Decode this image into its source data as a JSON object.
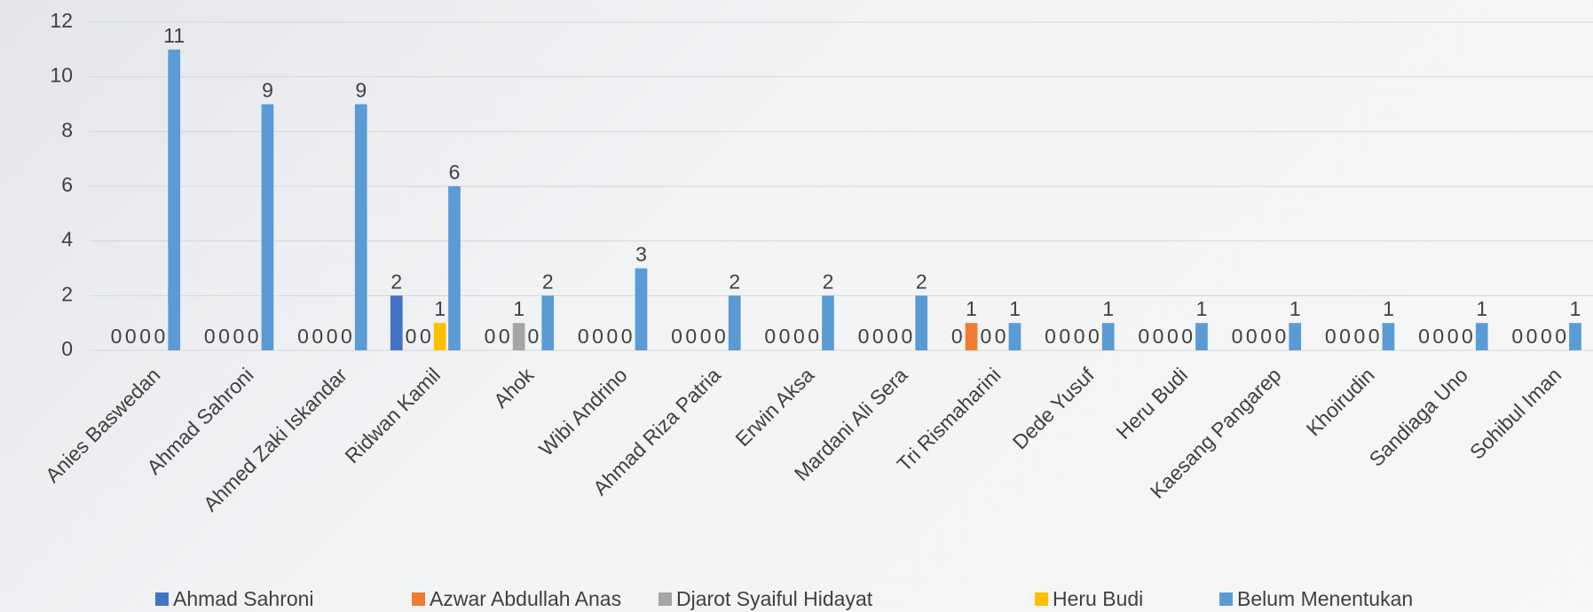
{
  "chart_data": {
    "type": "bar",
    "categories": [
      "Anies Baswedan",
      "Ahmad Sahroni",
      "Ahmed Zaki Iskandar",
      "Ridwan Kamil",
      "Ahok",
      "Wibi Andrino",
      "Ahmad Riza Patria",
      "Erwin Aksa",
      "Mardani Ali Sera",
      "Tri Rismaharini",
      "Dede Yusuf",
      "Heru Budi",
      "Kaesang Pangarep",
      "Khoirudin",
      "Sandiaga Uno",
      "Sohibul Iman"
    ],
    "series": [
      {
        "name": "Ahmad Sahroni",
        "color": "#4472c4",
        "values": [
          0,
          0,
          0,
          2,
          0,
          0,
          0,
          0,
          0,
          0,
          0,
          0,
          0,
          0,
          0,
          0
        ]
      },
      {
        "name": "Azwar Abdullah Anas",
        "color": "#ed7d31",
        "values": [
          0,
          0,
          0,
          0,
          0,
          0,
          0,
          0,
          0,
          1,
          0,
          0,
          0,
          0,
          0,
          0
        ]
      },
      {
        "name": "Djarot Syaiful Hidayat",
        "color": "#a5a5a5",
        "values": [
          0,
          0,
          0,
          0,
          1,
          0,
          0,
          0,
          0,
          0,
          0,
          0,
          0,
          0,
          0,
          0
        ]
      },
      {
        "name": "Heru Budi",
        "color": "#ffc000",
        "values": [
          0,
          0,
          0,
          1,
          0,
          0,
          0,
          0,
          0,
          0,
          0,
          0,
          0,
          0,
          0,
          0
        ]
      },
      {
        "name": "Belum Menentukan",
        "color": "#5b9bd5",
        "values": [
          11,
          9,
          9,
          6,
          2,
          3,
          2,
          2,
          2,
          1,
          1,
          1,
          1,
          1,
          1,
          1
        ]
      }
    ],
    "ylim": [
      0,
      12
    ],
    "yticks": [
      0,
      2,
      4,
      6,
      8,
      10,
      12
    ],
    "grid": true,
    "legend": "bottom"
  }
}
